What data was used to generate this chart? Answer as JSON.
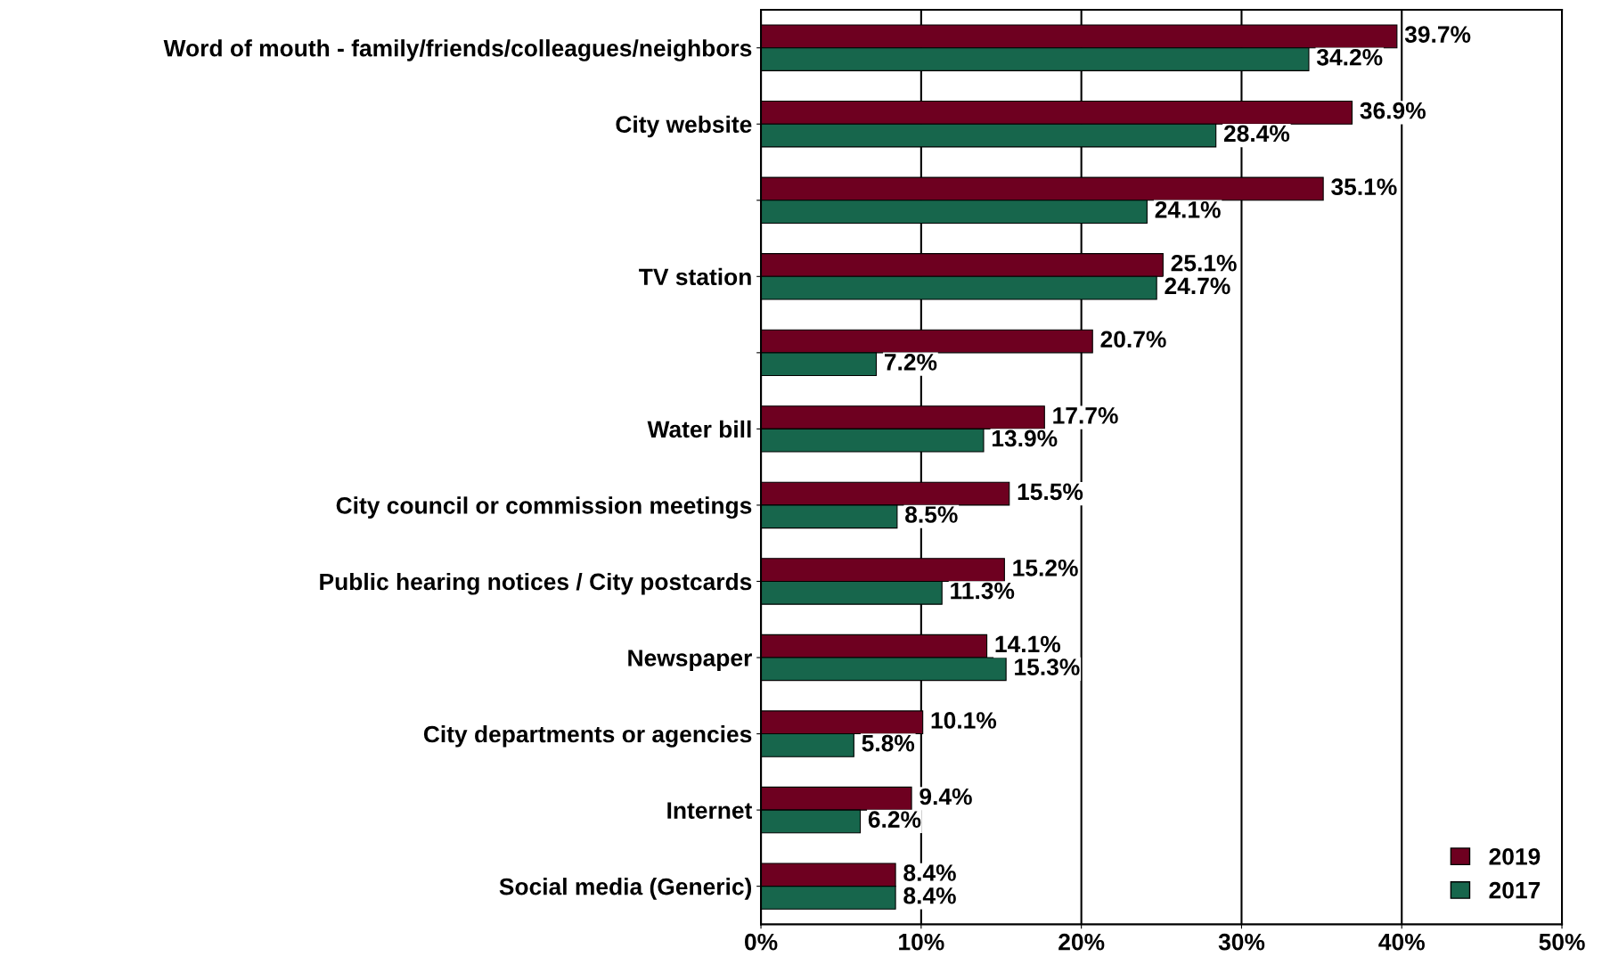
{
  "chart_data": {
    "type": "bar",
    "orientation": "horizontal",
    "categories": [
      "Word of mouth - family/friends/colleagues/neighbors",
      "City website",
      null,
      "TV station",
      null,
      "Water bill",
      "City council or commission meetings",
      "Public hearing notices / City postcards",
      "Newspaper",
      "City departments or agencies",
      "Internet",
      "Social media (Generic)"
    ],
    "series": [
      {
        "name": "2019",
        "color": "#6e0020",
        "values": [
          39.7,
          36.9,
          35.1,
          25.1,
          20.7,
          17.7,
          15.5,
          15.2,
          14.1,
          10.1,
          9.4,
          8.4
        ],
        "value_labels": [
          "39.7%",
          "36.9%",
          "35.1%",
          "25.1%",
          "20.7%",
          "17.7%",
          "15.5%",
          "15.2%",
          "14.1%",
          "10.1%",
          "9.4%",
          "8.4%"
        ]
      },
      {
        "name": "2017",
        "color": "#17664c",
        "values": [
          34.2,
          28.4,
          24.1,
          24.7,
          7.2,
          13.9,
          8.5,
          11.3,
          15.3,
          5.8,
          6.2,
          8.4
        ],
        "value_labels": [
          "34.2%",
          "28.4%",
          "24.1%",
          "24.7%",
          "7.2%",
          "13.9%",
          "8.5%",
          "11.3%",
          "15.3%",
          "5.8%",
          "6.2%",
          "8.4%"
        ]
      }
    ],
    "xlim": [
      0,
      50
    ],
    "xticks": [
      {
        "value": 0,
        "label": "0%"
      },
      {
        "value": 10,
        "label": "10%"
      },
      {
        "value": 20,
        "label": "20%"
      },
      {
        "value": 30,
        "label": "30%"
      },
      {
        "value": 40,
        "label": "40%"
      },
      {
        "value": 50,
        "label": "50%"
      }
    ],
    "grid": "x",
    "legend": "bottom right"
  }
}
